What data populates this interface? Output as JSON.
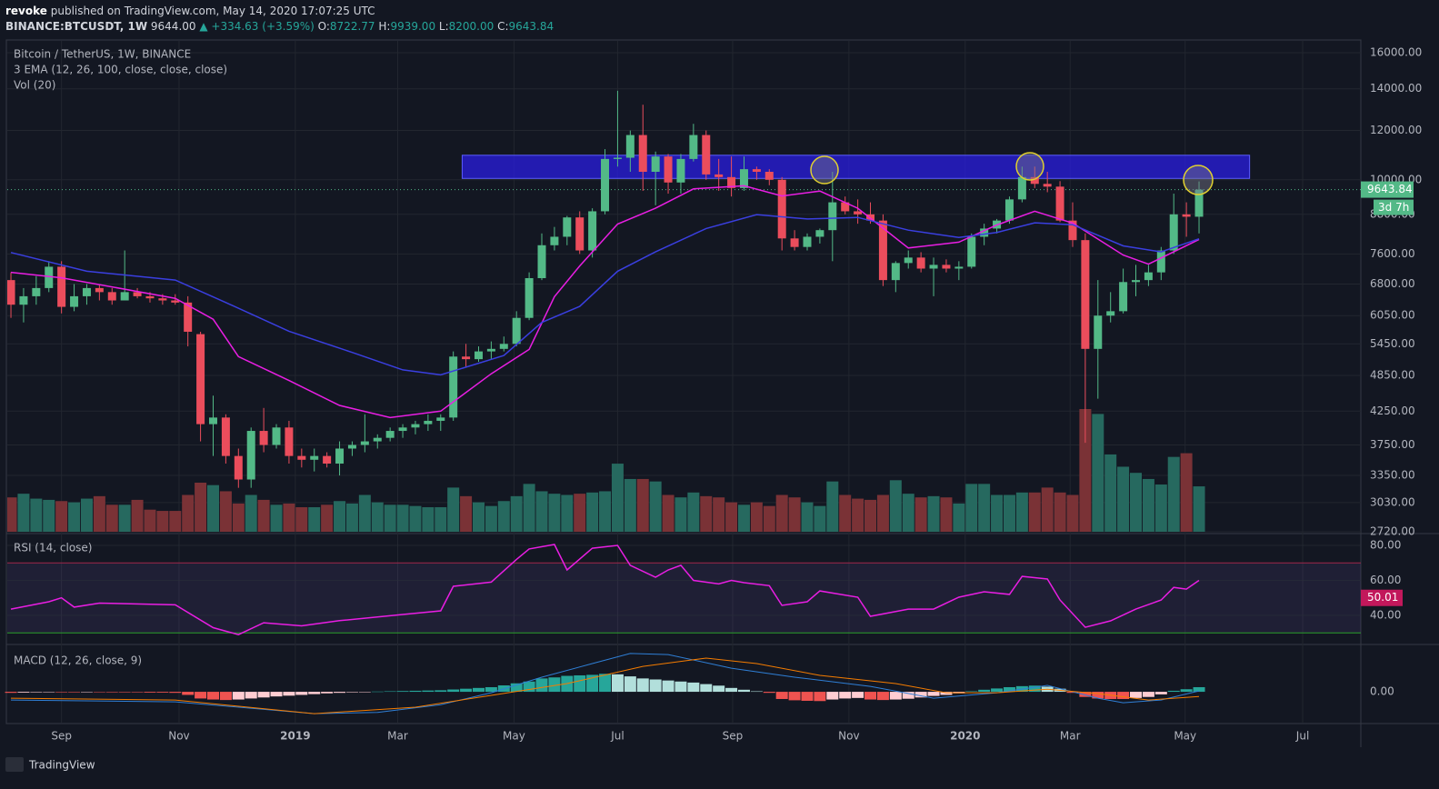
{
  "header": {
    "author": "revoke",
    "published": "published on TradingView.com, May 14, 2020 17:07:25 UTC",
    "symbol": "BINANCE:BTCUSDT, 1W",
    "price": "9644.00",
    "change": "▲ +334.63 (+3.59%)",
    "ohlc": [
      {
        "label": "O:",
        "value": "8722.77"
      },
      {
        "label": "H:",
        "value": "9939.00"
      },
      {
        "label": "L:",
        "value": "8200.00"
      },
      {
        "label": "C:",
        "value": "9643.84"
      }
    ]
  },
  "legend": [
    "Bitcoin / TetherUS, 1W, BINANCE",
    "3 EMA (12, 26, 100, close, close, close)",
    "Vol (20)"
  ],
  "rsi_title": "RSI (14, close)",
  "macd_title": "MACD (12, 26, close, 9)",
  "brand": "TradingView",
  "countdown": "3d 7h",
  "chart_data": {
    "type": "candlestick",
    "log_scale": true,
    "grid": true,
    "up_color": "#53b987",
    "down_color": "#eb4d5c",
    "volume_up_color": "#26695f",
    "volume_down_color": "#7a3236",
    "xlim": [
      -0.29,
      106.8
    ],
    "xticks": [
      {
        "value": 4,
        "label": "Sep"
      },
      {
        "value": 13.3,
        "label": "Nov"
      },
      {
        "value": 22.5,
        "label": "2019"
      },
      {
        "value": 30.6,
        "label": "Mar"
      },
      {
        "value": 39.8,
        "label": "May"
      },
      {
        "value": 48,
        "label": "Jul"
      },
      {
        "value": 57.1,
        "label": "Sep"
      },
      {
        "value": 66.3,
        "label": "Nov"
      },
      {
        "value": 75.5,
        "label": "2020"
      },
      {
        "value": 83.8,
        "label": "Mar"
      },
      {
        "value": 92.9,
        "label": "May"
      },
      {
        "value": 102.2,
        "label": "Jul"
      }
    ],
    "ylim": [
      2720,
      16000
    ],
    "yticks": [
      {
        "value": 16000,
        "label": "16000.00"
      },
      {
        "value": 14000,
        "label": "14000.00"
      },
      {
        "value": 12000,
        "label": "12000.00"
      },
      {
        "value": 10000,
        "label": "10000.00"
      },
      {
        "value": 8800,
        "label": "8800.00"
      },
      {
        "value": 7600,
        "label": "7600.00"
      },
      {
        "value": 6800,
        "label": "6800.00"
      },
      {
        "value": 6050,
        "label": "6050.00"
      },
      {
        "value": 5450,
        "label": "5450.00"
      },
      {
        "value": 4850,
        "label": "4850.00"
      },
      {
        "value": 4250,
        "label": "4250.00"
      },
      {
        "value": 3750,
        "label": "3750.00"
      },
      {
        "value": 3350,
        "label": "3350.00"
      },
      {
        "value": 3030,
        "label": "3030.00"
      },
      {
        "value": 2720,
        "label": "2720.00"
      }
    ],
    "open": [
      6900,
      6300,
      6500,
      6700,
      7250,
      6250,
      6500,
      6700,
      6600,
      6400,
      6600,
      6500,
      6450,
      6400,
      6350,
      5650,
      4050,
      4150,
      3600,
      3300,
      3950,
      3750,
      4000,
      3600,
      3550,
      3600,
      3500,
      3700,
      3750,
      3800,
      3850,
      3950,
      4000,
      4050,
      4100,
      4150,
      5200,
      5150,
      5300,
      5350,
      5450,
      6000,
      6950,
      7850,
      8100,
      8700,
      7700,
      8900,
      10800,
      10850,
      11800,
      10300,
      10900,
      9900,
      10800,
      11800,
      10200,
      10100,
      9700,
      10400,
      10300,
      10000,
      8050,
      7800,
      8100,
      8300,
      9200,
      8900,
      8800,
      8600,
      6900,
      7350,
      7500,
      7200,
      7300,
      7200,
      7250,
      8100,
      8350,
      8600,
      9300,
      10100,
      9850,
      9750,
      8600,
      8000,
      5350,
      6050,
      6150,
      6850,
      6900,
      7100,
      7700,
      8800,
      8722.77
    ],
    "high": [
      7100,
      6700,
      7000,
      7400,
      7400,
      6800,
      6800,
      6800,
      6700,
      7700,
      6700,
      6600,
      6550,
      6550,
      6500,
      5700,
      4500,
      4200,
      3700,
      4000,
      4300,
      4050,
      4100,
      3700,
      3700,
      3650,
      3800,
      3800,
      4200,
      3900,
      4000,
      4050,
      4100,
      4200,
      4200,
      5300,
      5450,
      5400,
      5500,
      5600,
      6150,
      7100,
      8200,
      8400,
      8750,
      8900,
      9000,
      11200,
      13900,
      12000,
      13200,
      11100,
      11000,
      11000,
      12300,
      12000,
      10800,
      10900,
      10900,
      10500,
      10400,
      10100,
      8300,
      8200,
      8350,
      10300,
      9400,
      9300,
      9200,
      8800,
      7400,
      7700,
      7650,
      7500,
      7450,
      7400,
      8200,
      8500,
      8650,
      9400,
      10500,
      10500,
      10300,
      9950,
      9200,
      8200,
      6900,
      6600,
      7200,
      7300,
      7300,
      7800,
      9500,
      9200,
      9939
    ],
    "low": [
      6000,
      5900,
      6300,
      6600,
      6100,
      6150,
      6300,
      6400,
      6300,
      6400,
      6450,
      6350,
      6300,
      6300,
      5400,
      3800,
      3600,
      3500,
      3200,
      3200,
      3650,
      3700,
      3500,
      3450,
      3400,
      3450,
      3350,
      3600,
      3650,
      3700,
      3800,
      3850,
      3900,
      3950,
      3950,
      4100,
      5000,
      5100,
      5150,
      5300,
      5400,
      5950,
      6900,
      7700,
      7850,
      7600,
      7500,
      8800,
      10500,
      10300,
      9600,
      9100,
      9500,
      9500,
      10700,
      10000,
      9600,
      9400,
      9600,
      10000,
      9800,
      7700,
      7700,
      7700,
      7900,
      7400,
      8800,
      8500,
      8500,
      6750,
      6600,
      7200,
      7100,
      6500,
      7100,
      6900,
      7200,
      7850,
      8200,
      8500,
      9200,
      9700,
      9550,
      8550,
      7800,
      3780,
      4450,
      5900,
      6100,
      6500,
      6750,
      6900,
      7600,
      8100,
      8200
    ],
    "close": [
      6300,
      6500,
      6700,
      7250,
      6250,
      6500,
      6700,
      6600,
      6400,
      6600,
      6500,
      6450,
      6400,
      6350,
      5700,
      4050,
      4150,
      3600,
      3300,
      3950,
      3750,
      4000,
      3600,
      3550,
      3600,
      3500,
      3700,
      3750,
      3800,
      3850,
      3950,
      4000,
      4050,
      4100,
      4150,
      5200,
      5150,
      5300,
      5350,
      5450,
      6000,
      6950,
      7850,
      8100,
      8700,
      7700,
      8900,
      10800,
      10850,
      11800,
      10300,
      10900,
      9900,
      10800,
      11800,
      10200,
      10100,
      9700,
      10400,
      10300,
      10000,
      8050,
      7800,
      8100,
      8300,
      9200,
      8900,
      8800,
      8600,
      6900,
      7350,
      7500,
      7200,
      7300,
      7200,
      7250,
      8100,
      8350,
      8600,
      9300,
      10100,
      9850,
      9750,
      8600,
      8000,
      5350,
      6050,
      6150,
      6850,
      6900,
      7100,
      7700,
      8800,
      8722.77,
      9643.84
    ],
    "volume": [
      280,
      310,
      270,
      260,
      250,
      240,
      270,
      290,
      220,
      220,
      260,
      180,
      170,
      170,
      300,
      400,
      380,
      330,
      230,
      300,
      260,
      220,
      230,
      200,
      200,
      220,
      250,
      230,
      300,
      240,
      220,
      220,
      210,
      200,
      200,
      360,
      290,
      240,
      210,
      250,
      290,
      390,
      330,
      310,
      300,
      310,
      320,
      330,
      555,
      430,
      430,
      410,
      300,
      280,
      320,
      290,
      280,
      240,
      220,
      240,
      210,
      300,
      280,
      240,
      210,
      410,
      300,
      270,
      260,
      300,
      420,
      310,
      280,
      290,
      280,
      230,
      390,
      390,
      300,
      300,
      320,
      320,
      360,
      320,
      300,
      1000,
      960,
      630,
      530,
      480,
      430,
      385,
      610,
      640,
      370
    ],
    "volume_ylim": [
      0,
      4000
    ],
    "ema_lines": [
      {
        "color": "#e91ee3",
        "x": [
          0,
          4,
          13,
          16,
          18,
          22,
          26,
          30,
          34,
          38,
          41,
          43,
          45,
          48,
          51,
          54,
          58,
          61,
          64,
          67,
          71,
          75,
          78,
          81,
          84,
          88,
          90,
          94
        ],
        "values": [
          7100,
          6960,
          6450,
          5970,
          5200,
          4760,
          4340,
          4150,
          4250,
          4880,
          5340,
          6490,
          7270,
          8490,
          9000,
          9670,
          9780,
          9420,
          9590,
          9000,
          7770,
          7940,
          8460,
          8900,
          8520,
          7570,
          7320,
          8020
        ]
      },
      {
        "color": "#3a3fe0",
        "x": [
          0,
          6,
          13,
          17,
          22,
          27,
          31,
          34,
          39,
          42,
          45,
          48,
          51,
          55,
          59,
          63,
          67,
          71,
          75,
          78,
          81,
          84,
          88,
          91,
          94
        ],
        "values": [
          7640,
          7130,
          6900,
          6350,
          5710,
          5280,
          4950,
          4860,
          5220,
          5900,
          6260,
          7130,
          7660,
          8350,
          8790,
          8650,
          8700,
          8300,
          8080,
          8230,
          8530,
          8470,
          7830,
          7660,
          8040
        ]
      }
    ],
    "resistance_zone": {
      "x": [
        35.7,
        98.0
      ],
      "y": [
        10050,
        10950
      ],
      "color": "#2a1ee0"
    },
    "rsi": {
      "color": "#e91ee3",
      "ylim": [
        25.45,
        85.2
      ],
      "yticks": [
        {
          "value": 80,
          "label": "80.00"
        },
        {
          "value": 60,
          "label": "60.00"
        },
        {
          "value": 40,
          "label": "40.00"
        }
      ],
      "levels": [
        {
          "value": 70,
          "color": "#a0264a"
        },
        {
          "value": 30,
          "color": "#2aa02a"
        }
      ],
      "marker": 50.01,
      "x": [
        0,
        3,
        4,
        5,
        7,
        13,
        16,
        18,
        20,
        23,
        26,
        31,
        34,
        35,
        38,
        40,
        41,
        43,
        44,
        46,
        48,
        49,
        51,
        52,
        53,
        54,
        56,
        57,
        58,
        60,
        61,
        63,
        64,
        67,
        68,
        71,
        73,
        75,
        77,
        79,
        80,
        82,
        83,
        85,
        87,
        89,
        91,
        92,
        93,
        94
      ],
      "values": [
        43.6,
        47.8,
        50,
        44.7,
        47,
        46,
        33,
        29,
        35.8,
        34,
        37,
        40.5,
        42.6,
        56.6,
        59,
        72,
        78,
        80.5,
        66,
        78.4,
        80,
        68.6,
        61.8,
        66,
        68.6,
        60,
        58,
        60,
        58.7,
        57,
        45.7,
        47.8,
        54,
        50.4,
        39.5,
        43.6,
        43.6,
        50.4,
        53.5,
        52,
        62.3,
        60.8,
        48.8,
        33.2,
        36.9,
        43.6,
        48.8,
        56,
        55,
        60
      ]
    },
    "macd": {
      "ylim": [
        -1200,
        1700
      ],
      "yticks": [
        {
          "value": 0,
          "label": "0.00"
        }
      ],
      "hist_colors": {
        "pos_up": "#26a69a",
        "pos_down": "#b2dfdb",
        "neg_down": "#ef5350",
        "neg_up": "#ffcdd2"
      },
      "histogram": [
        -40,
        -30,
        -20,
        -10,
        -20,
        -20,
        -10,
        -10,
        -20,
        -20,
        -20,
        -30,
        -30,
        -40,
        -120,
        -260,
        -300,
        -320,
        -300,
        -260,
        -220,
        -180,
        -150,
        -120,
        -90,
        -60,
        -40,
        -20,
        -10,
        10,
        20,
        30,
        40,
        50,
        60,
        90,
        120,
        150,
        180,
        250,
        330,
        400,
        520,
        560,
        620,
        640,
        660,
        700,
        680,
        600,
        520,
        480,
        440,
        400,
        360,
        300,
        240,
        150,
        80,
        20,
        -40,
        -280,
        -330,
        -350,
        -360,
        -300,
        -260,
        -240,
        -300,
        -320,
        -300,
        -270,
        -220,
        -160,
        -120,
        -60,
        20,
        80,
        130,
        180,
        220,
        240,
        200,
        120,
        -40,
        -200,
        -260,
        -280,
        -280,
        -240,
        -200,
        -100,
        40,
        100,
        180
      ],
      "lines": [
        {
          "color": "#2f7fd6",
          "x": [
            0,
            13,
            24,
            29,
            34,
            38,
            42,
            46,
            49,
            52,
            57,
            62,
            68,
            73,
            78,
            82,
            86,
            88,
            91,
            94
          ],
          "values": [
            -320,
            -390,
            -850,
            -800,
            -500,
            -35,
            570,
            1100,
            1490,
            1450,
            920,
            570,
            210,
            -250,
            -35,
            250,
            -250,
            -425,
            -320,
            35
          ]
        },
        {
          "color": "#f57c00",
          "x": [
            0,
            13,
            24,
            32,
            38,
            44,
            50,
            55,
            59,
            64,
            70,
            74,
            78,
            82,
            86,
            90,
            94
          ],
          "values": [
            -250,
            -320,
            -850,
            -600,
            -140,
            320,
            990,
            1310,
            1100,
            640,
            320,
            -35,
            -35,
            100,
            -70,
            -320,
            -180
          ]
        }
      ]
    }
  }
}
